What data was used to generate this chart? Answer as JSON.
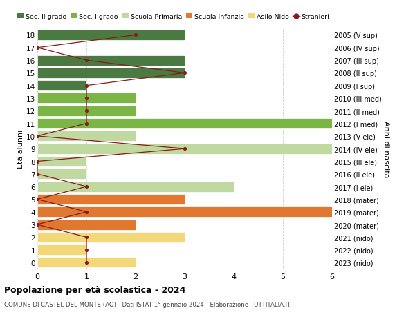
{
  "ages": [
    18,
    17,
    16,
    15,
    14,
    13,
    12,
    11,
    10,
    9,
    8,
    7,
    6,
    5,
    4,
    3,
    2,
    1,
    0
  ],
  "right_labels": [
    "2005 (V sup)",
    "2006 (IV sup)",
    "2007 (III sup)",
    "2008 (II sup)",
    "2009 (I sup)",
    "2010 (III med)",
    "2011 (II med)",
    "2012 (I med)",
    "2013 (V ele)",
    "2014 (IV ele)",
    "2015 (III ele)",
    "2016 (II ele)",
    "2017 (I ele)",
    "2018 (mater)",
    "2019 (mater)",
    "2020 (mater)",
    "2021 (nido)",
    "2022 (nido)",
    "2023 (nido)"
  ],
  "bar_values": [
    3,
    0,
    3,
    3,
    1,
    2,
    2,
    6,
    2,
    6,
    1,
    1,
    4,
    3,
    6,
    2,
    3,
    1,
    2
  ],
  "bar_colors": [
    "#4a7a42",
    "#4a7a42",
    "#4a7a42",
    "#4a7a42",
    "#4a7a42",
    "#7ab545",
    "#7ab545",
    "#7ab545",
    "#c0d9a0",
    "#c0d9a0",
    "#c0d9a0",
    "#c0d9a0",
    "#c0d9a0",
    "#e07830",
    "#e07830",
    "#e07830",
    "#f2d878",
    "#f2d878",
    "#f2d878"
  ],
  "stranieri_values": [
    2,
    0,
    1,
    3,
    1,
    1,
    1,
    1,
    0,
    3,
    0,
    0,
    1,
    0,
    1,
    0,
    1,
    1,
    1
  ],
  "stranieri_color": "#8b1a1a",
  "legend_items": [
    {
      "label": "Sec. II grado",
      "color": "#4a7a42"
    },
    {
      "label": "Sec. I grado",
      "color": "#7ab545"
    },
    {
      "label": "Scuola Primaria",
      "color": "#c0d9a0"
    },
    {
      "label": "Scuola Infanzia",
      "color": "#e07830"
    },
    {
      "label": "Asilo Nido",
      "color": "#f2d878"
    },
    {
      "label": "Stranieri",
      "color": "#8b1a1a"
    }
  ],
  "ylabel_left": "Età alunni",
  "ylabel_right": "Anni di nascita",
  "title": "Popolazione per età scolastica - 2024",
  "subtitle": "COMUNE DI CASTEL DEL MONTE (AQ) - Dati ISTAT 1° gennaio 2024 - Elaborazione TUTTITALIA.IT",
  "xlim": [
    0,
    6
  ],
  "xticks": [
    0,
    1,
    2,
    3,
    4,
    5,
    6
  ],
  "background_color": "#ffffff",
  "grid_color": "#cccccc",
  "bar_height": 0.82
}
